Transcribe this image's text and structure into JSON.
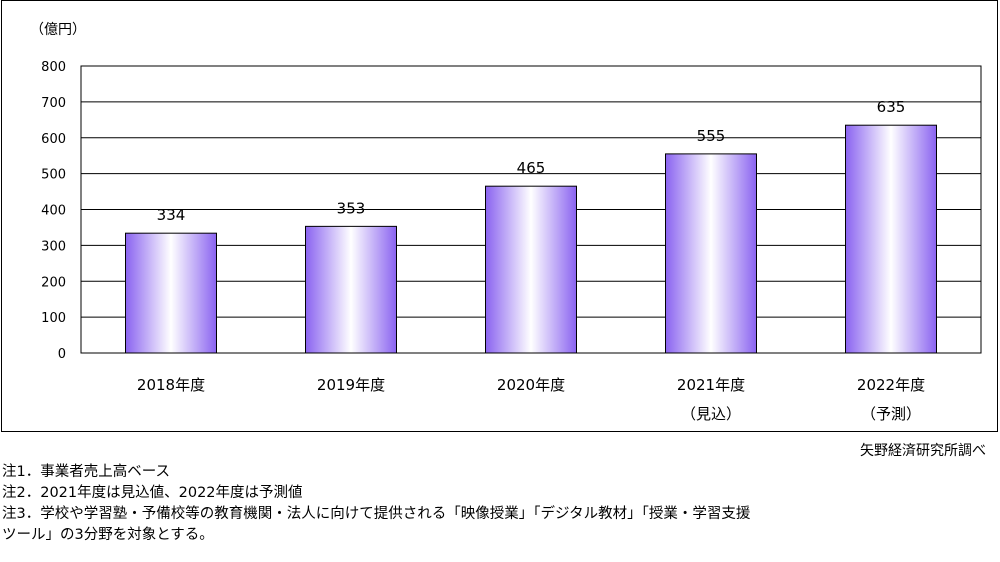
{
  "chart_data": {
    "type": "bar",
    "unit_label": "（億円）",
    "categories": [
      "2018年度",
      "2019年度",
      "2020年度",
      "2021年度",
      "2022年度"
    ],
    "category_sublabels": [
      "",
      "",
      "",
      "（見込）",
      "（予測）"
    ],
    "values": [
      334,
      353,
      465,
      555,
      635
    ],
    "ylim": [
      0,
      800
    ],
    "yticks": [
      0,
      100,
      200,
      300,
      400,
      500,
      600,
      700,
      800
    ],
    "grid": true,
    "bar_gradient": {
      "edge": "#8a63f0",
      "center": "#ffffff"
    }
  },
  "source": "矢野経済研究所調べ",
  "notes": [
    "注1．事業者売上高ベース",
    "注2．2021年度は見込値、2022年度は予測値",
    "注3．学校や学習塾・予備校等の教育機関・法人に向けて提供される「映像授業」「デジタル教材」「授業・学習支援",
    "ツール」の3分野を対象とする。"
  ]
}
